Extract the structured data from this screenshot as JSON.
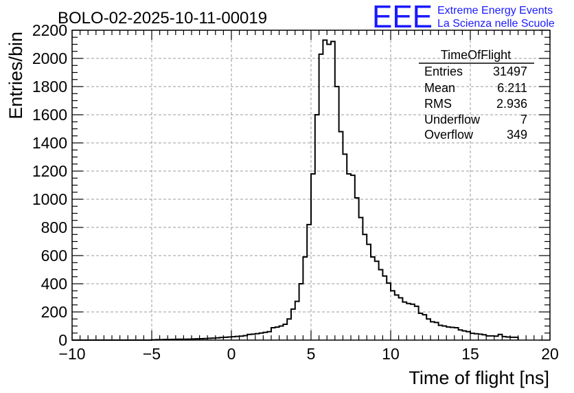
{
  "colors": {
    "eee_blue": "#1a1aff",
    "frame": "#000000",
    "grid": "#9a9a9a"
  },
  "logo": {
    "text": "EEE",
    "line1": "Extreme Energy Events",
    "line2": "La Scienza nelle Scuole"
  },
  "stats": {
    "title": "TimeOfFlight",
    "rows": [
      {
        "label": "Entries",
        "value": "31497"
      },
      {
        "label": "Mean",
        "value": "6.211"
      },
      {
        "label": "RMS",
        "value": "2.936"
      },
      {
        "label": "Underflow",
        "value": "7"
      },
      {
        "label": "Overflow",
        "value": "349"
      }
    ]
  },
  "chart_data": {
    "type": "histogram",
    "title": "BOLO-02-2025-10-11-00019",
    "xlabel": "Time of flight [ns]",
    "ylabel": "Entries/bin",
    "xlim": [
      -10,
      20
    ],
    "ylim": [
      0,
      2200
    ],
    "xticks": [
      -10,
      -5,
      0,
      5,
      10,
      15,
      20
    ],
    "yticks": [
      0,
      200,
      400,
      600,
      800,
      1000,
      1200,
      1400,
      1600,
      1800,
      2000,
      2200
    ],
    "grid": true,
    "bin_width": 0.25,
    "x_start": -5,
    "values": [
      2,
      3,
      3,
      4,
      4,
      5,
      6,
      6,
      6,
      7,
      8,
      9,
      10,
      11,
      13,
      14,
      16,
      18,
      20,
      22,
      24,
      26,
      28,
      32,
      40,
      42,
      46,
      50,
      55,
      60,
      88,
      92,
      100,
      112,
      150,
      220,
      275,
      400,
      590,
      820,
      1180,
      1600,
      2030,
      2130,
      2100,
      2120,
      1800,
      1480,
      1320,
      1180,
      1170,
      1010,
      870,
      750,
      680,
      590,
      560,
      500,
      455,
      405,
      350,
      320,
      300,
      270,
      260,
      255,
      240,
      190,
      180,
      150,
      130,
      125,
      105,
      100,
      93,
      90,
      88,
      72,
      65,
      60,
      48,
      45,
      42,
      38,
      30,
      30,
      28,
      40,
      25,
      22,
      20,
      20
    ]
  }
}
